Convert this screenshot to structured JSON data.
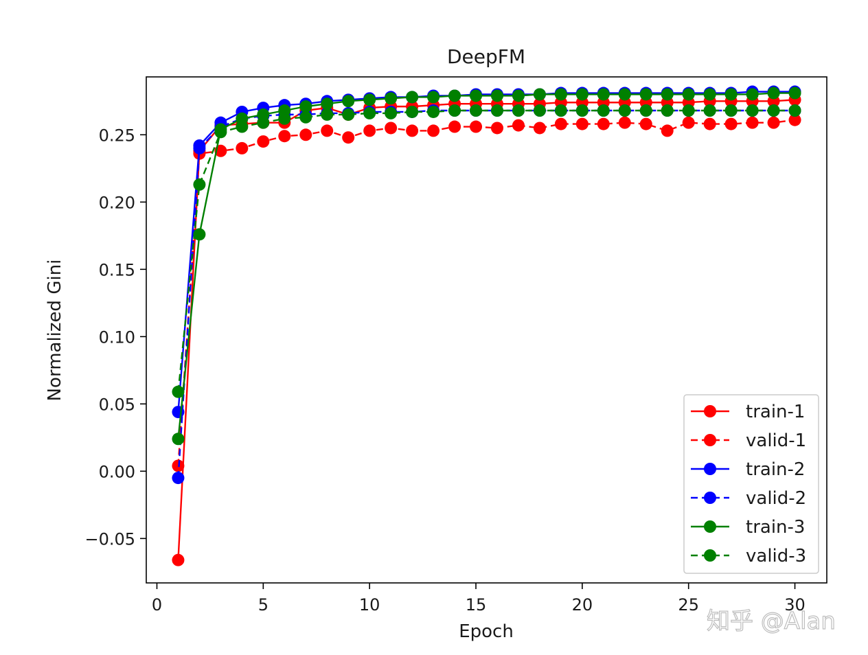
{
  "chart_data": {
    "type": "line",
    "title": "DeepFM",
    "xlabel": "Epoch",
    "ylabel": "Normalized Gini",
    "xlim": [
      -0.5,
      31.5
    ],
    "ylim": [
      -0.083,
      0.293
    ],
    "xticks": [
      0,
      5,
      10,
      15,
      20,
      25,
      30
    ],
    "xtick_labels": [
      "0",
      "5",
      "10",
      "15",
      "20",
      "25",
      "30"
    ],
    "yticks": [
      -0.05,
      0.0,
      0.05,
      0.1,
      0.15,
      0.2,
      0.25
    ],
    "ytick_labels": [
      "−0.05",
      "0.00",
      "0.05",
      "0.10",
      "0.15",
      "0.20",
      "0.25"
    ],
    "legend_position": "lower-right",
    "x": [
      1,
      2,
      3,
      4,
      5,
      6,
      7,
      8,
      9,
      10,
      11,
      12,
      13,
      14,
      15,
      16,
      17,
      18,
      19,
      20,
      21,
      22,
      23,
      24,
      25,
      26,
      27,
      28,
      29,
      30
    ],
    "series": [
      {
        "name": "train-1",
        "color": "#ff0000",
        "style": "solid",
        "values": [
          -0.066,
          0.238,
          0.257,
          0.258,
          0.259,
          0.259,
          0.268,
          0.27,
          0.265,
          0.27,
          0.271,
          0.271,
          0.272,
          0.273,
          0.273,
          0.273,
          0.273,
          0.273,
          0.274,
          0.274,
          0.274,
          0.274,
          0.274,
          0.274,
          0.274,
          0.275,
          0.275,
          0.275,
          0.275,
          0.276
        ]
      },
      {
        "name": "valid-1",
        "color": "#ff0000",
        "style": "dashed",
        "values": [
          0.004,
          0.236,
          0.238,
          0.24,
          0.245,
          0.249,
          0.25,
          0.253,
          0.248,
          0.253,
          0.255,
          0.253,
          0.253,
          0.256,
          0.256,
          0.255,
          0.257,
          0.255,
          0.258,
          0.258,
          0.258,
          0.259,
          0.258,
          0.253,
          0.259,
          0.258,
          0.258,
          0.259,
          0.259,
          0.261
        ]
      },
      {
        "name": "train-2",
        "color": "#0000ff",
        "style": "solid",
        "values": [
          0.044,
          0.242,
          0.259,
          0.267,
          0.27,
          0.272,
          0.273,
          0.275,
          0.276,
          0.277,
          0.278,
          0.278,
          0.279,
          0.279,
          0.28,
          0.28,
          0.28,
          0.28,
          0.281,
          0.281,
          0.281,
          0.281,
          0.281,
          0.281,
          0.281,
          0.281,
          0.281,
          0.282,
          0.282,
          0.282
        ]
      },
      {
        "name": "valid-2",
        "color": "#0000ff",
        "style": "dashed",
        "values": [
          -0.005,
          0.24,
          0.256,
          0.262,
          0.264,
          0.265,
          0.265,
          0.266,
          0.266,
          0.267,
          0.267,
          0.267,
          0.268,
          0.268,
          0.268,
          0.268,
          0.268,
          0.268,
          0.268,
          0.268,
          0.268,
          0.268,
          0.268,
          0.268,
          0.268,
          0.268,
          0.268,
          0.268,
          0.268,
          0.268
        ]
      },
      {
        "name": "train-3",
        "color": "#008000",
        "style": "solid",
        "values": [
          0.024,
          0.176,
          0.254,
          0.262,
          0.265,
          0.268,
          0.271,
          0.273,
          0.275,
          0.276,
          0.277,
          0.278,
          0.278,
          0.279,
          0.279,
          0.279,
          0.279,
          0.28,
          0.28,
          0.28,
          0.28,
          0.28,
          0.28,
          0.28,
          0.28,
          0.28,
          0.28,
          0.28,
          0.281,
          0.281
        ]
      },
      {
        "name": "valid-3",
        "color": "#008000",
        "style": "dashed",
        "values": [
          0.059,
          0.213,
          0.252,
          0.256,
          0.259,
          0.262,
          0.263,
          0.265,
          0.265,
          0.266,
          0.266,
          0.267,
          0.267,
          0.268,
          0.268,
          0.268,
          0.268,
          0.268,
          0.268,
          0.268,
          0.268,
          0.268,
          0.268,
          0.268,
          0.268,
          0.268,
          0.268,
          0.268,
          0.268,
          0.268
        ]
      }
    ]
  },
  "watermark": {
    "text": "知乎 @Alan"
  }
}
